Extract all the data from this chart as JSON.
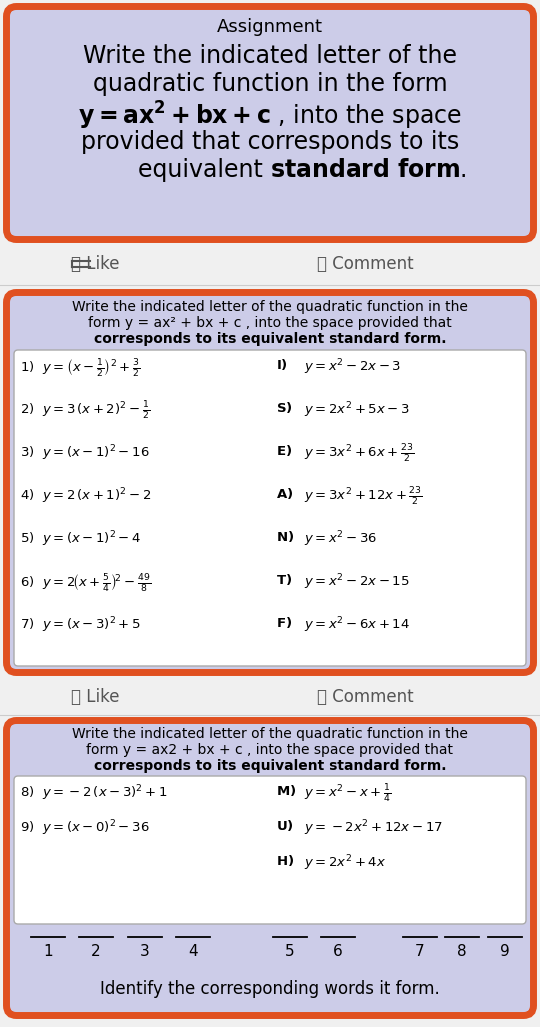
{
  "bg_color": "#f0f0f0",
  "orange_border": "#e05020",
  "lavender_bg": "#cccce8",
  "white_bg": "#ffffff",
  "section1_title": "Assignment",
  "section2_header1": "Write the indicated letter of the quadratic function in the",
  "section2_header2": "form y = ax² + bx + c , into the space provided that",
  "section2_header3": "corresponds to its equivalent standard form.",
  "section3_header1": "Write the indicated letter of the quadratic function in the",
  "section3_header2": "form y = ax2 + bx + c , into the space provided that",
  "section3_header3": "corresponds to its equivalent standard form.",
  "footer": "Identify the corresponding words it form."
}
